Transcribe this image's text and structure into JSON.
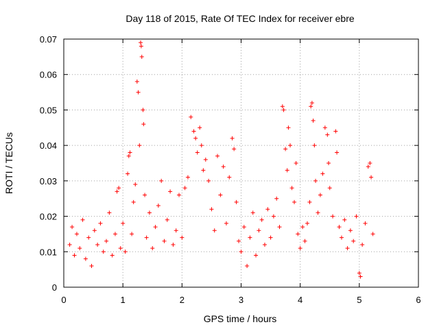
{
  "chart_data": {
    "type": "scatter",
    "title": "Day 118 of 2015, Rate Of TEC Index for receiver ebre",
    "xlabel": "GPS time / hours",
    "ylabel": "ROTI / TECUs",
    "xlim": [
      0,
      6
    ],
    "ylim": [
      0,
      0.07
    ],
    "x_ticks": [
      "0",
      "1",
      "2",
      "3",
      "4",
      "5",
      "6"
    ],
    "y_ticks": [
      "0",
      "0.01",
      "0.02",
      "0.03",
      "0.04",
      "0.05",
      "0.06",
      "0.07"
    ],
    "grid": true,
    "marker": "+",
    "colors": {
      "series": "#ff0000",
      "grid": "#a0a0a0",
      "axis": "#000000"
    },
    "series": [
      {
        "name": "ROTI",
        "points": [
          [
            0.1,
            0.012
          ],
          [
            0.14,
            0.017
          ],
          [
            0.18,
            0.009
          ],
          [
            0.22,
            0.015
          ],
          [
            0.27,
            0.011
          ],
          [
            0.32,
            0.019
          ],
          [
            0.37,
            0.008
          ],
          [
            0.42,
            0.014
          ],
          [
            0.47,
            0.006
          ],
          [
            0.52,
            0.016
          ],
          [
            0.57,
            0.012
          ],
          [
            0.62,
            0.018
          ],
          [
            0.67,
            0.01
          ],
          [
            0.72,
            0.013
          ],
          [
            0.77,
            0.021
          ],
          [
            0.82,
            0.009
          ],
          [
            0.87,
            0.015
          ],
          [
            0.9,
            0.027
          ],
          [
            0.93,
            0.028
          ],
          [
            0.96,
            0.011
          ],
          [
            1.0,
            0.018
          ],
          [
            1.04,
            0.01
          ],
          [
            1.08,
            0.032
          ],
          [
            1.1,
            0.037
          ],
          [
            1.12,
            0.038
          ],
          [
            1.15,
            0.015
          ],
          [
            1.18,
            0.024
          ],
          [
            1.21,
            0.029
          ],
          [
            1.24,
            0.058
          ],
          [
            1.26,
            0.055
          ],
          [
            1.28,
            0.04
          ],
          [
            1.3,
            0.069
          ],
          [
            1.31,
            0.068
          ],
          [
            1.32,
            0.065
          ],
          [
            1.34,
            0.05
          ],
          [
            1.35,
            0.046
          ],
          [
            1.37,
            0.026
          ],
          [
            1.4,
            0.014
          ],
          [
            1.45,
            0.021
          ],
          [
            1.5,
            0.011
          ],
          [
            1.55,
            0.017
          ],
          [
            1.6,
            0.023
          ],
          [
            1.65,
            0.03
          ],
          [
            1.7,
            0.013
          ],
          [
            1.75,
            0.019
          ],
          [
            1.8,
            0.027
          ],
          [
            1.85,
            0.012
          ],
          [
            1.9,
            0.016
          ],
          [
            1.95,
            0.026
          ],
          [
            2.0,
            0.014
          ],
          [
            2.05,
            0.028
          ],
          [
            2.1,
            0.031
          ],
          [
            2.15,
            0.048
          ],
          [
            2.2,
            0.044
          ],
          [
            2.23,
            0.042
          ],
          [
            2.26,
            0.038
          ],
          [
            2.3,
            0.045
          ],
          [
            2.33,
            0.04
          ],
          [
            2.36,
            0.033
          ],
          [
            2.4,
            0.036
          ],
          [
            2.45,
            0.03
          ],
          [
            2.5,
            0.022
          ],
          [
            2.55,
            0.016
          ],
          [
            2.6,
            0.037
          ],
          [
            2.65,
            0.026
          ],
          [
            2.7,
            0.034
          ],
          [
            2.75,
            0.018
          ],
          [
            2.8,
            0.031
          ],
          [
            2.85,
            0.042
          ],
          [
            2.88,
            0.039
          ],
          [
            2.92,
            0.024
          ],
          [
            2.96,
            0.013
          ],
          [
            3.0,
            0.01
          ],
          [
            3.05,
            0.017
          ],
          [
            3.1,
            0.006
          ],
          [
            3.15,
            0.014
          ],
          [
            3.2,
            0.021
          ],
          [
            3.25,
            0.009
          ],
          [
            3.3,
            0.016
          ],
          [
            3.35,
            0.019
          ],
          [
            3.4,
            0.012
          ],
          [
            3.45,
            0.022
          ],
          [
            3.5,
            0.014
          ],
          [
            3.55,
            0.02
          ],
          [
            3.6,
            0.025
          ],
          [
            3.65,
            0.017
          ],
          [
            3.7,
            0.051
          ],
          [
            3.72,
            0.05
          ],
          [
            3.75,
            0.039
          ],
          [
            3.78,
            0.033
          ],
          [
            3.8,
            0.045
          ],
          [
            3.83,
            0.04
          ],
          [
            3.86,
            0.028
          ],
          [
            3.9,
            0.024
          ],
          [
            3.93,
            0.035
          ],
          [
            3.96,
            0.015
          ],
          [
            4.0,
            0.011
          ],
          [
            4.04,
            0.017
          ],
          [
            4.08,
            0.013
          ],
          [
            4.12,
            0.018
          ],
          [
            4.16,
            0.024
          ],
          [
            4.18,
            0.051
          ],
          [
            4.2,
            0.052
          ],
          [
            4.22,
            0.047
          ],
          [
            4.24,
            0.04
          ],
          [
            4.26,
            0.03
          ],
          [
            4.3,
            0.021
          ],
          [
            4.34,
            0.026
          ],
          [
            4.38,
            0.032
          ],
          [
            4.42,
            0.045
          ],
          [
            4.46,
            0.043
          ],
          [
            4.48,
            0.035
          ],
          [
            4.5,
            0.028
          ],
          [
            4.55,
            0.02
          ],
          [
            4.6,
            0.044
          ],
          [
            4.62,
            0.038
          ],
          [
            4.66,
            0.017
          ],
          [
            4.7,
            0.014
          ],
          [
            4.75,
            0.019
          ],
          [
            4.8,
            0.011
          ],
          [
            4.85,
            0.016
          ],
          [
            4.9,
            0.013
          ],
          [
            4.95,
            0.02
          ],
          [
            5.0,
            0.004
          ],
          [
            5.02,
            0.003
          ],
          [
            5.05,
            0.012
          ],
          [
            5.1,
            0.018
          ],
          [
            5.15,
            0.034
          ],
          [
            5.18,
            0.035
          ],
          [
            5.2,
            0.031
          ],
          [
            5.23,
            0.015
          ]
        ]
      }
    ]
  }
}
